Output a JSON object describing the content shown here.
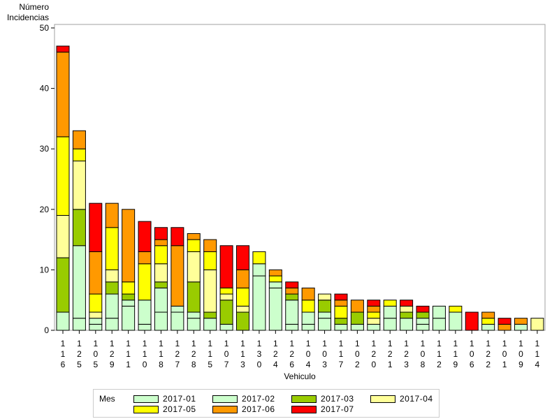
{
  "chart_data": {
    "type": "bar",
    "stacked": true,
    "ylabel": [
      "Número",
      "Incidencias"
    ],
    "xlabel": "Vehiculo",
    "ylim": [
      0,
      50
    ],
    "yticks": [
      0,
      10,
      20,
      30,
      40,
      50
    ],
    "grid": false,
    "legend_title": "Mes",
    "legend_placement": "bottom",
    "categories": [
      "116",
      "125",
      "105",
      "129",
      "111",
      "110",
      "118",
      "127",
      "128",
      "115",
      "107",
      "113",
      "130",
      "124",
      "126",
      "104",
      "103",
      "117",
      "102",
      "120",
      "121",
      "123",
      "108",
      "112",
      "119",
      "106",
      "122",
      "101",
      "109",
      "114"
    ],
    "series": [
      {
        "name": "2017-01",
        "color": "#ccffcc",
        "values": [
          3,
          2,
          1,
          2,
          4,
          1,
          3,
          3,
          2,
          2,
          1,
          0,
          9,
          7,
          1,
          1,
          2,
          1,
          1,
          1,
          2,
          2,
          1,
          2,
          3,
          0,
          1,
          0,
          1,
          0
        ]
      },
      {
        "name": "2017-02",
        "color": "#ccffcc",
        "values": [
          0,
          12,
          1,
          4,
          1,
          4,
          4,
          1,
          1,
          0,
          0,
          0,
          2,
          1,
          4,
          2,
          1,
          0,
          0,
          0,
          2,
          0,
          1,
          2,
          0,
          0,
          0,
          0,
          0,
          0
        ]
      },
      {
        "name": "2017-03",
        "color": "#99cc00",
        "values": [
          9,
          6,
          0,
          2,
          1,
          0,
          1,
          0,
          5,
          1,
          4,
          3,
          0,
          0,
          1,
          0,
          2,
          1,
          2,
          0,
          0,
          1,
          1,
          0,
          0,
          0,
          0,
          0,
          0,
          0
        ]
      },
      {
        "name": "2017-04",
        "color": "#ffff99",
        "values": [
          7,
          8,
          1,
          2,
          0,
          0,
          3,
          0,
          5,
          7,
          1,
          1,
          0,
          0,
          0,
          0,
          1,
          0,
          0,
          1,
          0,
          1,
          0,
          0,
          0,
          0,
          0,
          0,
          0,
          2
        ]
      },
      {
        "name": "2017-05",
        "color": "#ffff00",
        "values": [
          13,
          2,
          3,
          7,
          2,
          6,
          3,
          0,
          2,
          3,
          1,
          3,
          2,
          1,
          0,
          2,
          0,
          2,
          0,
          1,
          1,
          0,
          0,
          0,
          1,
          0,
          1,
          0,
          0,
          0
        ]
      },
      {
        "name": "2017-06",
        "color": "#ff9900",
        "values": [
          14,
          3,
          7,
          4,
          12,
          2,
          1,
          10,
          1,
          2,
          0,
          3,
          0,
          1,
          1,
          2,
          0,
          1,
          2,
          1,
          0,
          0,
          0,
          0,
          0,
          0,
          1,
          1,
          1,
          0
        ]
      },
      {
        "name": "2017-07",
        "color": "#ff0000",
        "values": [
          1,
          0,
          8,
          0,
          0,
          5,
          2,
          3,
          0,
          0,
          7,
          4,
          0,
          0,
          1,
          0,
          0,
          1,
          0,
          1,
          0,
          1,
          1,
          0,
          0,
          3,
          0,
          1,
          0,
          0
        ]
      }
    ]
  }
}
